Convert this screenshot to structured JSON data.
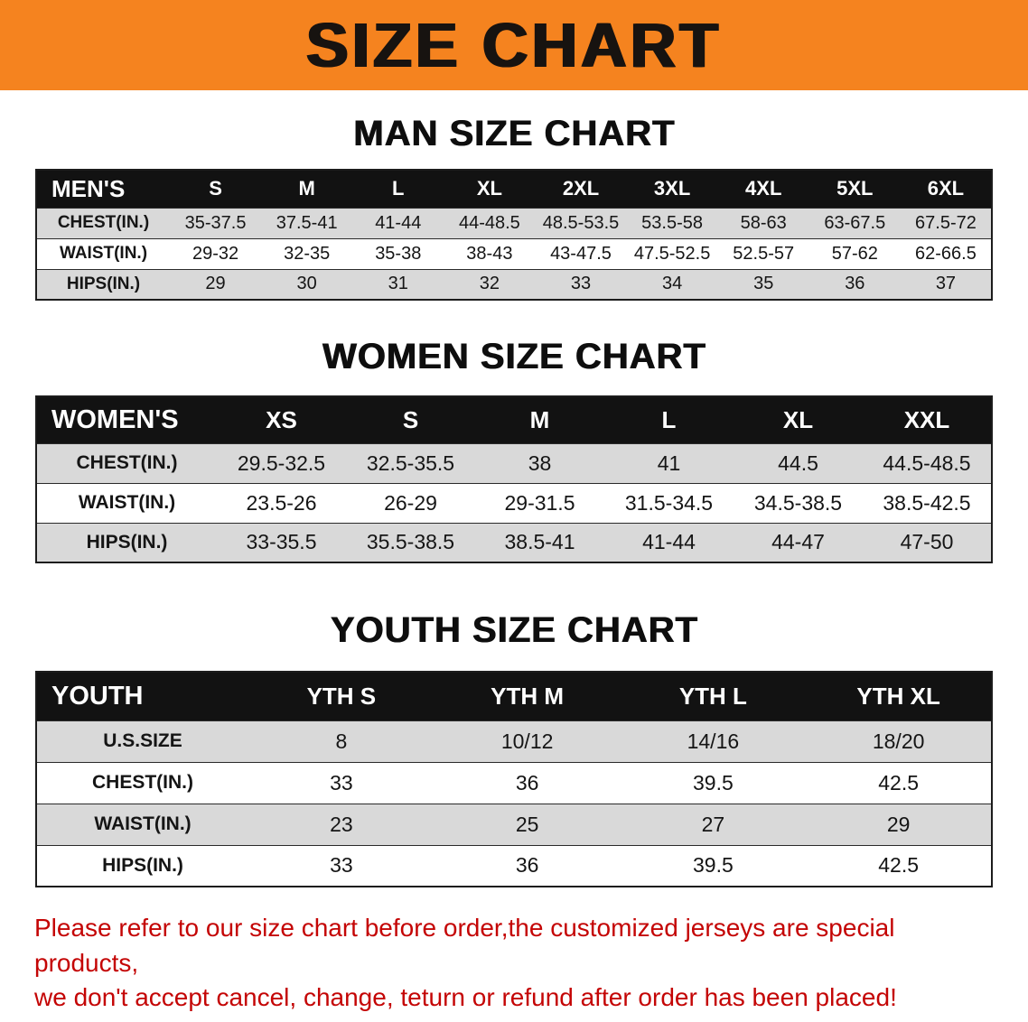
{
  "banner": {
    "title": "SIZE CHART"
  },
  "colors": {
    "banner_bg": "#f5831f",
    "table_header_bg": "#121212",
    "row_stripe": "#d9d9d9",
    "disclaimer_red": "#c40505"
  },
  "sections": [
    {
      "id": "men",
      "heading": "MAN SIZE CHART",
      "table": {
        "header": [
          "MEN'S",
          "S",
          "M",
          "L",
          "XL",
          "2XL",
          "3XL",
          "4XL",
          "5XL",
          "6XL"
        ],
        "rows": [
          [
            "CHEST(IN.)",
            "35-37.5",
            "37.5-41",
            "41-44",
            "44-48.5",
            "48.5-53.5",
            "53.5-58",
            "58-63",
            "63-67.5",
            "67.5-72"
          ],
          [
            "WAIST(IN.)",
            "29-32",
            "32-35",
            "35-38",
            "38-43",
            "43-47.5",
            "47.5-52.5",
            "52.5-57",
            "57-62",
            "62-66.5"
          ],
          [
            "HIPS(IN.)",
            "29",
            "30",
            "31",
            "32",
            "33",
            "34",
            "35",
            "36",
            "37"
          ]
        ]
      }
    },
    {
      "id": "women",
      "heading": "WOMEN SIZE CHART",
      "table": {
        "header": [
          "WOMEN'S",
          "XS",
          "S",
          "M",
          "L",
          "XL",
          "XXL"
        ],
        "rows": [
          [
            "CHEST(IN.)",
            "29.5-32.5",
            "32.5-35.5",
            "38",
            "41",
            "44.5",
            "44.5-48.5"
          ],
          [
            "WAIST(IN.)",
            "23.5-26",
            "26-29",
            "29-31.5",
            "31.5-34.5",
            "34.5-38.5",
            "38.5-42.5"
          ],
          [
            "HIPS(IN.)",
            "33-35.5",
            "35.5-38.5",
            "38.5-41",
            "41-44",
            "44-47",
            "47-50"
          ]
        ]
      }
    },
    {
      "id": "youth",
      "heading": "YOUTH SIZE CHART",
      "table": {
        "header": [
          "YOUTH",
          "YTH S",
          "YTH M",
          "YTH L",
          "YTH XL"
        ],
        "rows": [
          [
            "U.S.SIZE",
            "8",
            "10/12",
            "14/16",
            "18/20"
          ],
          [
            "CHEST(IN.)",
            "33",
            "36",
            "39.5",
            "42.5"
          ],
          [
            "WAIST(IN.)",
            "23",
            "25",
            "27",
            "29"
          ],
          [
            "HIPS(IN.)",
            "33",
            "36",
            "39.5",
            "42.5"
          ]
        ]
      }
    }
  ],
  "disclaimer": {
    "line1": "Please refer to our size chart before order,the customized jerseys are special products,",
    "line2": "we don't accept cancel, change, teturn or refund after order has been placed!"
  }
}
